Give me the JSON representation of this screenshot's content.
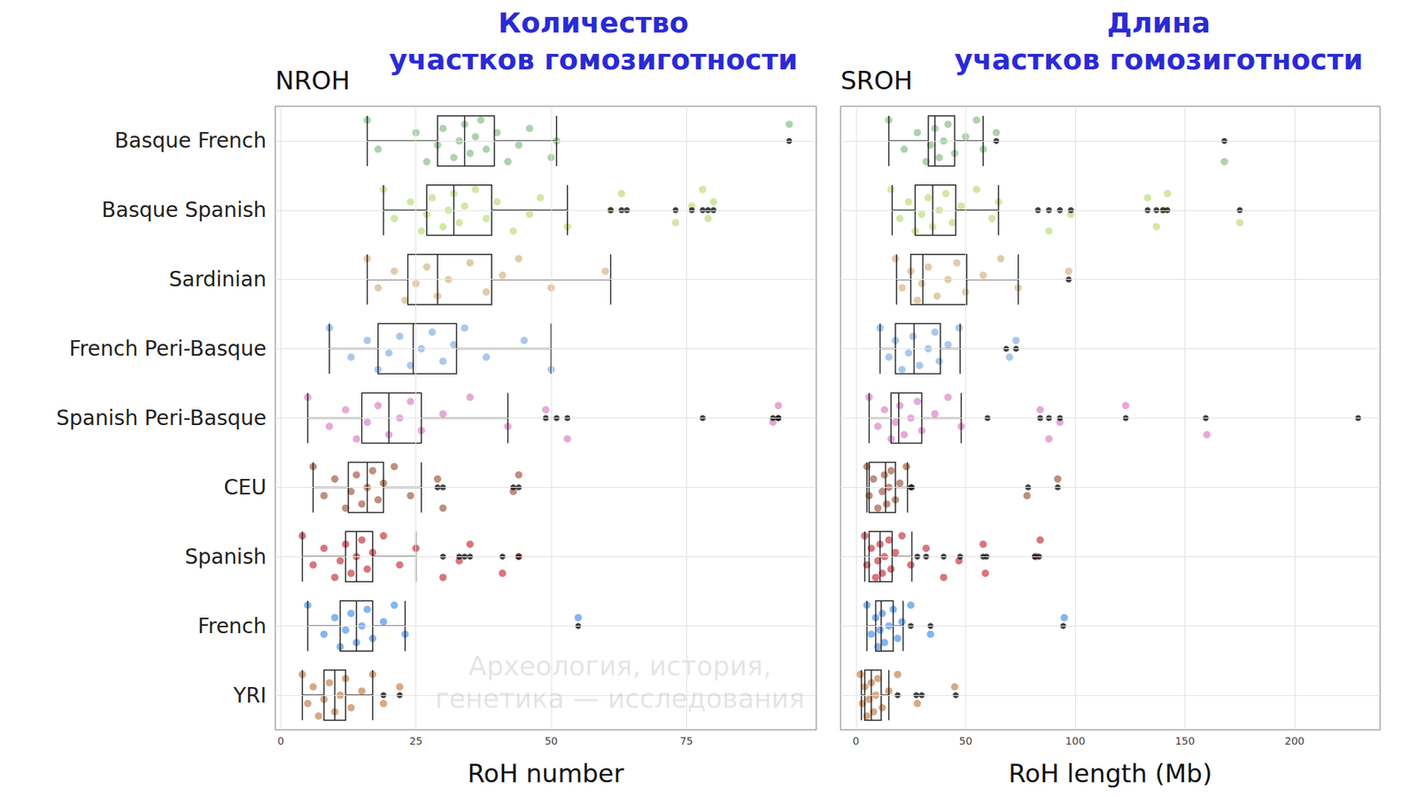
{
  "chart_data": [
    {
      "type": "boxplot",
      "title": "NROH",
      "subtitle": "Количество\nучастков гомозиготности",
      "xlabel": "RoH number",
      "annotation": "Археология, история,\nгенетика — исследования",
      "orientation": "horizontal",
      "grid": true,
      "categories": [
        "Basque French",
        "Basque Spanish",
        "Sardinian",
        "French Peri-Basque",
        "Spanish Peri-Basque",
        "CEU",
        "Spanish",
        "French",
        "YRI"
      ],
      "colors": [
        "#93c393",
        "#c3df88",
        "#d8b98c",
        "#8fb5e3",
        "#dc8ccc",
        "#a86a52",
        "#c94a52",
        "#5c9ce8",
        "#c98b5c"
      ],
      "boxes": [
        [
          16,
          29,
          34,
          39.5,
          51
        ],
        [
          19,
          27,
          32,
          39,
          53
        ],
        [
          16,
          23.5,
          29,
          39,
          61
        ],
        [
          9,
          18,
          24.5,
          32.5,
          50
        ],
        [
          5,
          15,
          20,
          26,
          42
        ],
        [
          6,
          12.5,
          16,
          19,
          26
        ],
        [
          4,
          12,
          14,
          17,
          25
        ],
        [
          5,
          11,
          14,
          17,
          23
        ],
        [
          4,
          8,
          10,
          12,
          17
        ]
      ],
      "outliers": [
        [
          94
        ],
        [
          61,
          63,
          64,
          73,
          76,
          78,
          79,
          80
        ],
        [],
        [],
        [
          49,
          51,
          53,
          78,
          91,
          92,
          92
        ],
        [
          29,
          30,
          43,
          44
        ],
        [
          30,
          33,
          34,
          35,
          41,
          44
        ],
        [
          55
        ],
        [
          19,
          22
        ]
      ],
      "points": [
        [
          16,
          18,
          25,
          27,
          29,
          30,
          32,
          33,
          34,
          35,
          36,
          37,
          38,
          40,
          42,
          44,
          46,
          50,
          51,
          94
        ],
        [
          19,
          21,
          24,
          26,
          27,
          28,
          30,
          31,
          32,
          33,
          34,
          36,
          38,
          40,
          43,
          46,
          48,
          53,
          61,
          63,
          73,
          76,
          78,
          79,
          80
        ],
        [
          16,
          18,
          21,
          23,
          25,
          27,
          29,
          31,
          35,
          38,
          41,
          44,
          50,
          60
        ],
        [
          9,
          13,
          16,
          18,
          20,
          22,
          24,
          26,
          28,
          30,
          32,
          34,
          38,
          45,
          50
        ],
        [
          5,
          9,
          12,
          14,
          16,
          18,
          20,
          22,
          24,
          26,
          30,
          35,
          42,
          49,
          53,
          91,
          92
        ],
        [
          6,
          8,
          10,
          12,
          13,
          14,
          15,
          16,
          17,
          18,
          19,
          21,
          24,
          29,
          30,
          43,
          44
        ],
        [
          4,
          6,
          8,
          10,
          11,
          12,
          13,
          14,
          15,
          16,
          17,
          19,
          22,
          25,
          30,
          33,
          35,
          41,
          44
        ],
        [
          5,
          8,
          10,
          11,
          12,
          13,
          14,
          15,
          16,
          17,
          19,
          21,
          23,
          55
        ],
        [
          4,
          5,
          6,
          7,
          8,
          9,
          10,
          11,
          12,
          13,
          15,
          17,
          19,
          22
        ]
      ],
      "xlim": [
        -1,
        99
      ],
      "xticks": [
        0,
        25,
        50,
        75
      ]
    },
    {
      "type": "boxplot",
      "title": "SROH",
      "subtitle": "Длина\nучастков гомозиготности",
      "xlabel": "RoH length (Mb)",
      "orientation": "horizontal",
      "grid": true,
      "tick_labels": "x",
      "categories": [
        "Basque French",
        "Basque Spanish",
        "Sardinian",
        "French Peri-Basque",
        "Spanish Peri-Basque",
        "CEU",
        "Spanish",
        "French",
        "YRI"
      ],
      "colors": [
        "#93c393",
        "#c3df88",
        "#d8b98c",
        "#8fb5e3",
        "#dc8ccc",
        "#a86a52",
        "#c94a52",
        "#5c9ce8",
        "#c98b5c"
      ],
      "boxes": [
        [
          15,
          33,
          36,
          45,
          58
        ],
        [
          16.5,
          27,
          35,
          45.5,
          65
        ],
        [
          18.5,
          25,
          30.5,
          50.5,
          74
        ],
        [
          11,
          18,
          26.5,
          38.5,
          47.5
        ],
        [
          6,
          16,
          19.5,
          30,
          48
        ],
        [
          5,
          6,
          13.5,
          18,
          23.5
        ],
        [
          4,
          6,
          11,
          16.5,
          25.5
        ],
        [
          5,
          9,
          11.5,
          17,
          21.5
        ],
        [
          2.5,
          4,
          7,
          11.5,
          15
        ]
      ],
      "outliers": [
        [
          64,
          168
        ],
        [
          83,
          88,
          93,
          98,
          133,
          137,
          140,
          142,
          175
        ],
        [
          97
        ],
        [
          68.5,
          73
        ],
        [
          60,
          84,
          88,
          93,
          123,
          159.5,
          229
        ],
        [
          25,
          25.5,
          78.5,
          92
        ],
        [
          28,
          32,
          40,
          47.5,
          58,
          59.5,
          81.5,
          83.5
        ],
        [
          25,
          34,
          94.5
        ],
        [
          19,
          27.5,
          30,
          45.5
        ]
      ],
      "points": [
        [
          15,
          22,
          28,
          32,
          34,
          36,
          38,
          40,
          42,
          45,
          50,
          55,
          58,
          64,
          168
        ],
        [
          16,
          20,
          24,
          27,
          30,
          33,
          35,
          38,
          41,
          44,
          48,
          55,
          62,
          65,
          88,
          98,
          133,
          137,
          140,
          142,
          175
        ],
        [
          18,
          21,
          25,
          28,
          30,
          33,
          37,
          42,
          46,
          50,
          58,
          66,
          74,
          97
        ],
        [
          11,
          15,
          18,
          21,
          24,
          26,
          29,
          33,
          36,
          38,
          42,
          47,
          70,
          73
        ],
        [
          6,
          10,
          13,
          16,
          18,
          20,
          22,
          25,
          28,
          30,
          36,
          42,
          48,
          84,
          88,
          93,
          123,
          160
        ],
        [
          5,
          6,
          8,
          10,
          12,
          13,
          14,
          15,
          16,
          18,
          20,
          23,
          78,
          92
        ],
        [
          4,
          5,
          7,
          9,
          10,
          11,
          12,
          13,
          15,
          16,
          18,
          21,
          25,
          32,
          40,
          47,
          58,
          59,
          82,
          84
        ],
        [
          5,
          7,
          9,
          10,
          11,
          12,
          13,
          15,
          17,
          19,
          21,
          25,
          34,
          95
        ],
        [
          2,
          3,
          4,
          5,
          6,
          7,
          8,
          9,
          10,
          12,
          15,
          19,
          28,
          45
        ]
      ],
      "xlim": [
        -7,
        239
      ],
      "xticks": [
        0,
        50,
        100,
        150,
        200
      ]
    }
  ]
}
